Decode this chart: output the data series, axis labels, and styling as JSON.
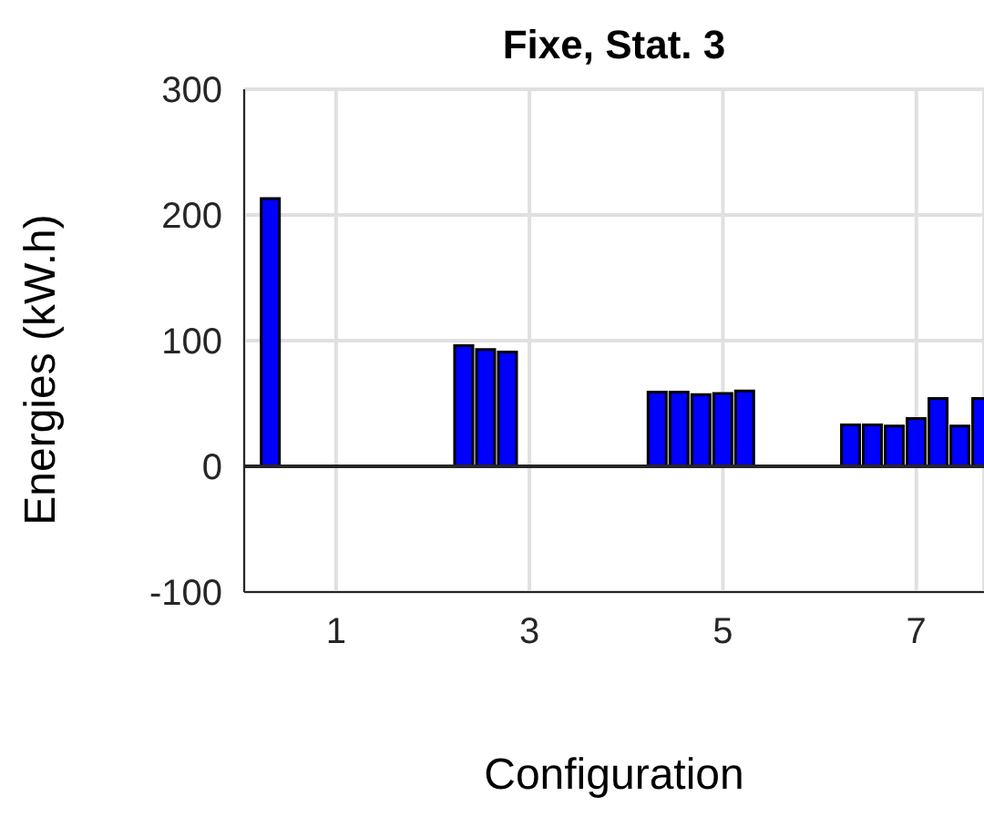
{
  "chart_data": {
    "type": "bar",
    "title": "Fixe, Stat. 3",
    "xlabel": "Configuration",
    "ylabel": "Energies (kW.h)",
    "x": [
      1,
      3,
      5,
      7
    ],
    "series": [
      {
        "color": "#0000ff",
        "values": [
          213,
          96,
          59,
          33
        ]
      },
      {
        "color": "#0000ff",
        "values": [
          0,
          93,
          59,
          33
        ]
      },
      {
        "color": "#0000ff",
        "values": [
          0,
          91,
          57,
          32
        ]
      },
      {
        "color": "#0000ff",
        "values": [
          0,
          0,
          58,
          38
        ]
      },
      {
        "color": "#0000ff",
        "values": [
          0,
          0,
          60,
          54
        ]
      },
      {
        "color": "#0000ff",
        "values": [
          0,
          0,
          0,
          32
        ]
      },
      {
        "color": "#0000ff",
        "values": [
          0,
          0,
          0,
          54
        ]
      }
    ],
    "xlim": [
      0.05,
      7.7
    ],
    "xticks": [
      1,
      3,
      5,
      7
    ],
    "ylim": [
      -100,
      300
    ],
    "yticks": [
      -100,
      0,
      100,
      200,
      300
    ],
    "ref_lines": [
      {
        "axis": "y",
        "value": 0,
        "color": "#262626"
      }
    ],
    "grid": true
  }
}
